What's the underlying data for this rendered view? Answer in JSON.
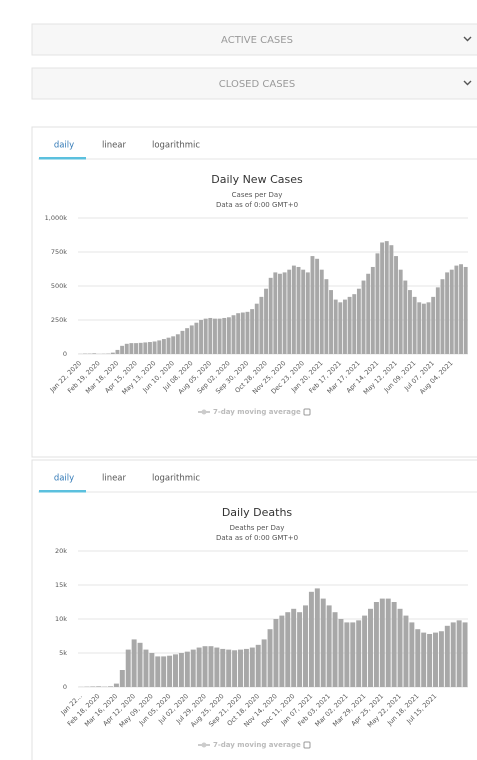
{
  "panels": [
    "ACTIVE CASES",
    "CLOSED CASES"
  ],
  "chart_data": [
    {
      "type": "bar",
      "tabs": [
        "daily",
        "linear",
        "logarithmic"
      ],
      "title": "Daily New Cases",
      "subtitle": [
        "Cases per Day",
        "Data as of 0:00 GMT+0"
      ],
      "legend": "7-day moving average",
      "color": "#a8a8a8",
      "ylim": [
        0,
        1000
      ],
      "yticks": [
        0,
        {
          "value": 250,
          "label": "250k"
        },
        {
          "value": 500,
          "label": "500k"
        },
        {
          "value": 750,
          "label": "750k"
        },
        {
          "value": 1000,
          "label": "1,000k"
        }
      ],
      "grid": true,
      "categories": [
        "Jan 22, 2020",
        null,
        null,
        null,
        "Feb 19, 2020",
        null,
        null,
        null,
        "Mar 18, 2020",
        null,
        null,
        null,
        "Apr 15, 2020",
        null,
        null,
        null,
        "May 13, 2020",
        null,
        null,
        null,
        "Jun 10, 2020",
        null,
        null,
        null,
        "Jul 08, 2020",
        null,
        null,
        null,
        "Aug 05, 2020",
        null,
        null,
        null,
        "Sep 02, 2020",
        null,
        null,
        null,
        "Sep 30, 2020",
        null,
        null,
        null,
        "Oct 28, 2020",
        null,
        null,
        null,
        "Nov 25, 2020",
        null,
        null,
        null,
        "Dec 23, 2020",
        null,
        null,
        null,
        "Jan 20, 2021",
        null,
        null,
        null,
        "Feb 17, 2021",
        null,
        null,
        null,
        "Mar 17, 2021",
        null,
        null,
        null,
        "Apr 14, 2021",
        null,
        null,
        null,
        "May 12, 2021",
        null,
        null,
        null,
        "Jun 09, 2021",
        null,
        null,
        null,
        "Jul 07, 2021",
        null,
        null,
        null,
        "Aug 04, 2021",
        null,
        null,
        null
      ],
      "values": [
        1,
        3,
        3,
        5,
        1,
        2,
        3,
        10,
        30,
        60,
        75,
        80,
        80,
        82,
        85,
        88,
        92,
        100,
        110,
        120,
        130,
        145,
        170,
        190,
        210,
        230,
        250,
        260,
        265,
        260,
        260,
        265,
        270,
        285,
        300,
        305,
        310,
        330,
        370,
        420,
        480,
        560,
        600,
        590,
        600,
        620,
        650,
        640,
        620,
        600,
        720,
        700,
        620,
        550,
        470,
        400,
        380,
        400,
        420,
        440,
        480,
        540,
        590,
        640,
        740,
        820,
        830,
        800,
        720,
        620,
        540,
        470,
        420,
        380,
        370,
        380,
        420,
        490,
        550,
        600,
        620,
        650,
        660,
        640
      ]
    },
    {
      "type": "bar",
      "tabs": [
        "daily",
        "linear",
        "logarithmic"
      ],
      "title": "Daily Deaths",
      "subtitle": [
        "Deaths per Day",
        "Data as of 0:00 GMT+0"
      ],
      "legend": "7-day moving average",
      "color": "#a8a8a8",
      "ylim": [
        0,
        20
      ],
      "yticks": [
        0,
        {
          "value": 5,
          "label": "5k"
        },
        {
          "value": 10,
          "label": "10k"
        },
        {
          "value": 15,
          "label": "15k"
        },
        {
          "value": 20,
          "label": "20k"
        }
      ],
      "grid": true,
      "categories": [
        "Jan 22...",
        null,
        null,
        "Feb 18, 2020",
        null,
        null,
        "Mar 16, 2020",
        null,
        null,
        "Apr 12, 2020",
        null,
        null,
        "May 09, 2020",
        null,
        null,
        "Jun 05, 2020",
        null,
        null,
        "Jul 02, 2020",
        null,
        null,
        "Jul 29, 2020",
        null,
        null,
        "Aug 25, 2020",
        null,
        null,
        "Sep 21, 2020",
        null,
        null,
        "Oct 18, 2020",
        null,
        null,
        "Nov 14, 2020",
        null,
        null,
        "Dec 11, 2020",
        null,
        null,
        "Jan 07, 2021",
        null,
        null,
        "Feb 03, 2021",
        null,
        null,
        "Mar 02, 2021",
        null,
        null,
        "Mar 29, 2021",
        null,
        null,
        "Apr 25, 2021",
        null,
        null,
        "May 22, 2021",
        null,
        null,
        "Jun 18, 2021",
        null,
        null,
        "Jul 15, 2021",
        null,
        null,
        null,
        null,
        null
      ],
      "values": [
        0.02,
        0.05,
        0.08,
        0.1,
        0.05,
        0.1,
        0.5,
        2.5,
        5.5,
        7,
        6.5,
        5.5,
        5,
        4.5,
        4.5,
        4.6,
        4.8,
        5,
        5.2,
        5.5,
        5.8,
        6,
        6,
        5.8,
        5.6,
        5.5,
        5.4,
        5.5,
        5.6,
        5.8,
        6.2,
        7,
        8.5,
        10,
        10.5,
        11,
        11.5,
        11,
        12,
        14,
        14.5,
        13,
        12,
        11,
        10,
        9.5,
        9.5,
        9.8,
        10.5,
        11.5,
        12.5,
        13,
        13,
        12.5,
        11.5,
        10.5,
        9.5,
        8.5,
        8,
        7.8,
        8,
        8.2,
        9,
        9.5,
        9.8,
        9.5
      ]
    }
  ]
}
